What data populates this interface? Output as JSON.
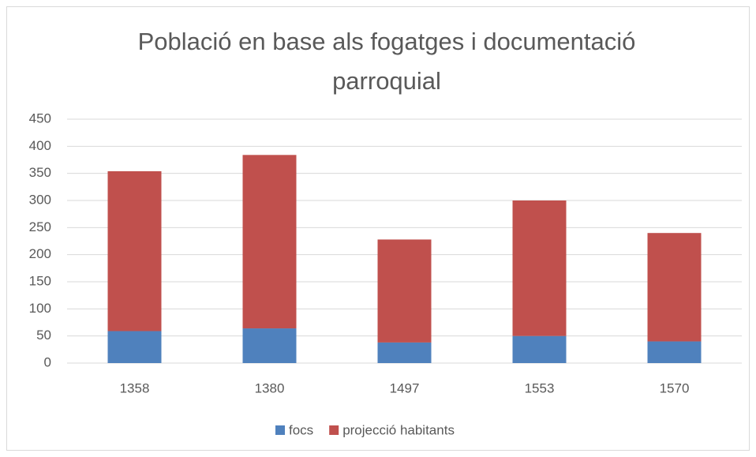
{
  "chart_data": {
    "type": "stacked_bar",
    "title": "Població en base als fogatges i documentació parroquial",
    "categories": [
      "1358",
      "1380",
      "1497",
      "1553",
      "1570"
    ],
    "series": [
      {
        "name": "focs",
        "color": "#4f81bd",
        "values": [
          59,
          64,
          38,
          50,
          40
        ]
      },
      {
        "name": "projecció habitants",
        "color": "#c0504d",
        "values": [
          295,
          320,
          190,
          250,
          200
        ]
      }
    ],
    "ylim": [
      0,
      450
    ],
    "yticks": [
      0,
      50,
      100,
      150,
      200,
      250,
      300,
      350,
      400,
      450
    ],
    "grid": true,
    "legend": "bottom"
  }
}
